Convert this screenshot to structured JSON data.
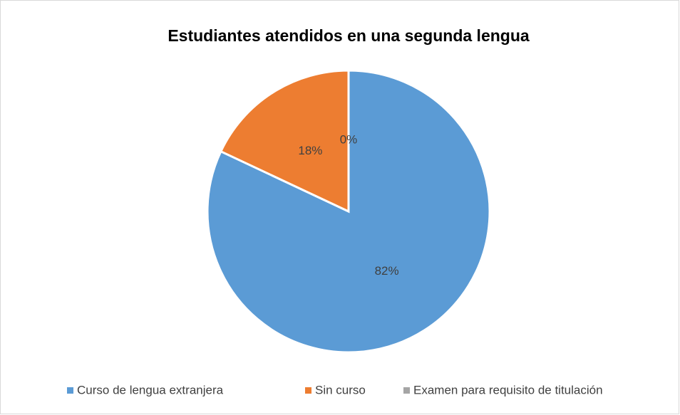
{
  "chart_data": {
    "type": "pie",
    "title": "Estudiantes atendidos en una segunda lengua",
    "categories": [
      "Curso de lengua extranjera",
      "Sin curso",
      "Examen para requisito de titulación"
    ],
    "values": [
      82,
      18,
      0
    ],
    "value_labels": [
      "82%",
      "18%",
      "0%"
    ],
    "colors": [
      "#5b9bd5",
      "#ed7d31",
      "#a5a5a5"
    ],
    "legend": "bottom"
  }
}
